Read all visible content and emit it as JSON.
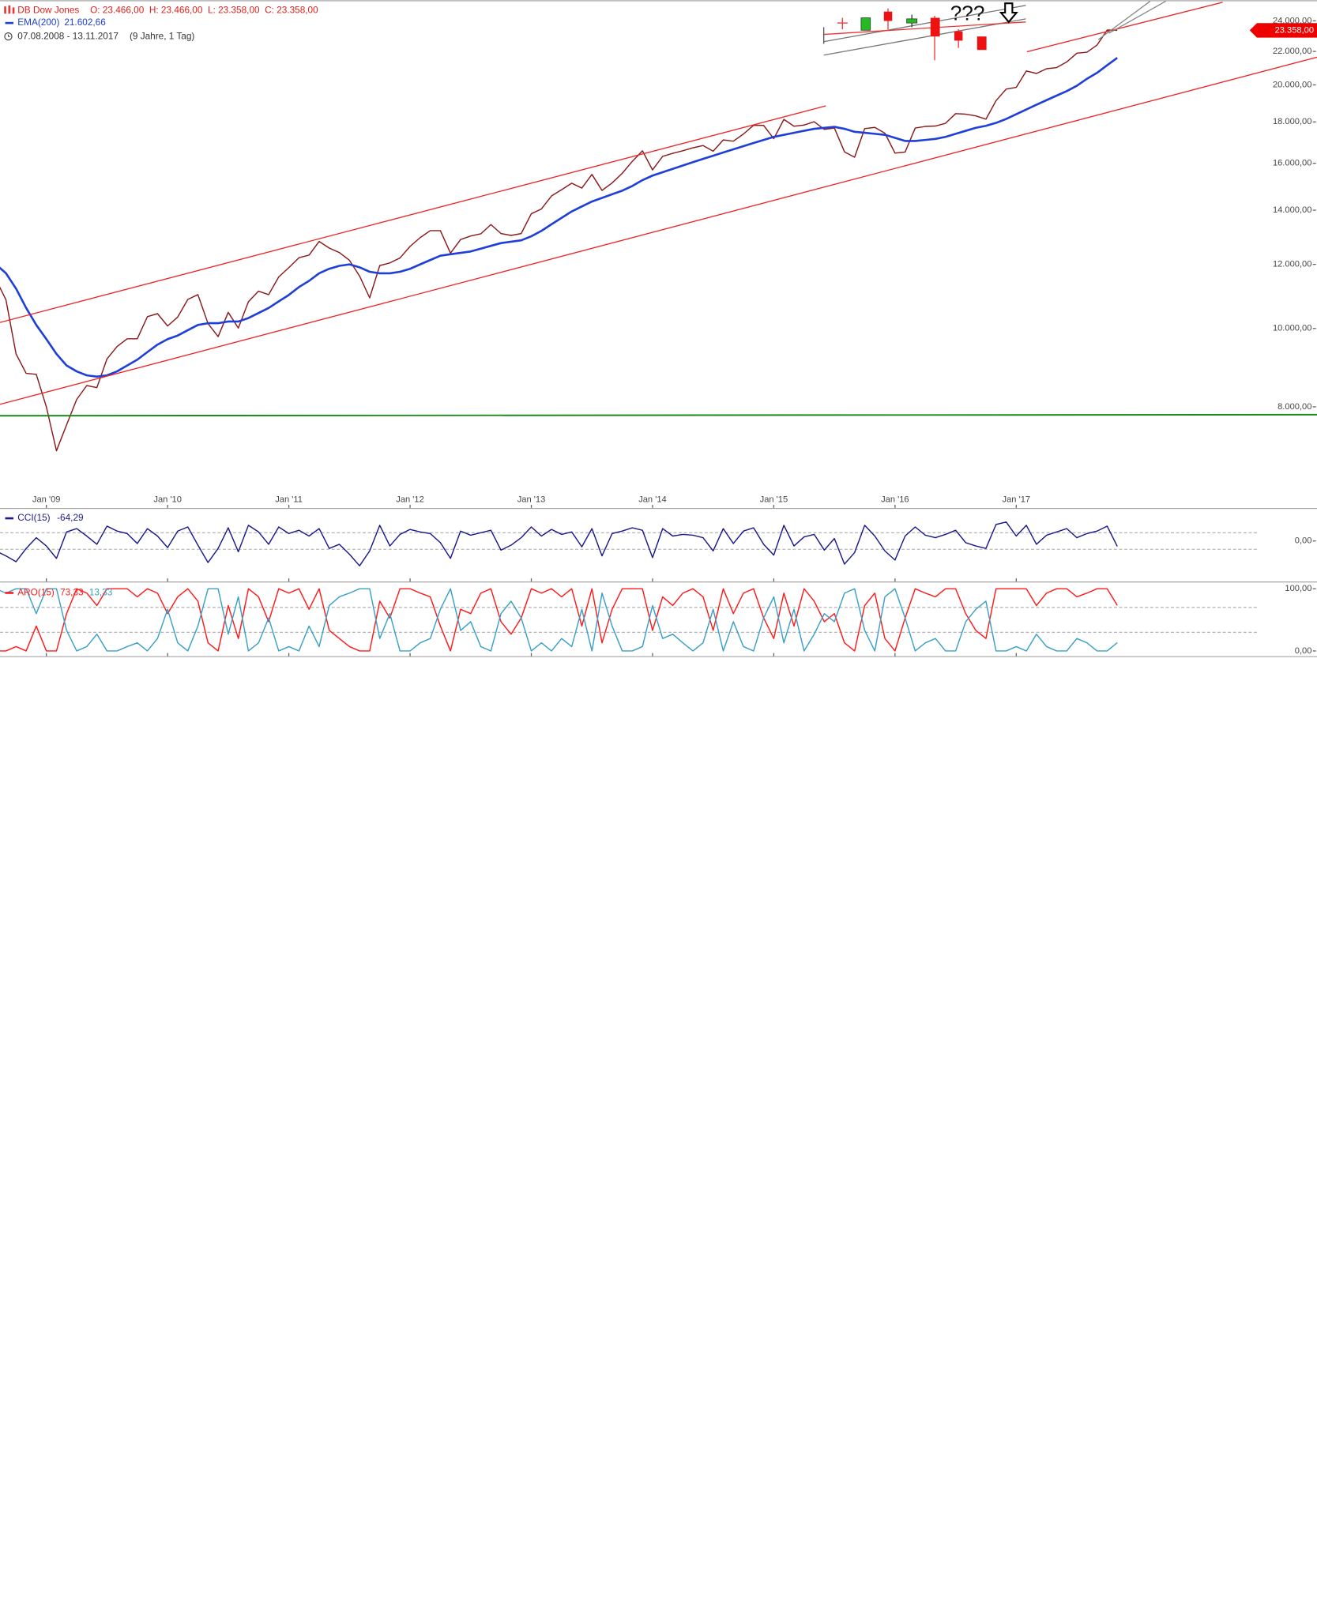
{
  "chart_data": [
    {
      "type": "line",
      "log": true,
      "title": "DB Dow Jones",
      "ohlc": "O: 23.466,00  H: 23.466,00  L: 23.358,00  C: 23.358,00",
      "period": "07.08.2008 - 13.11.2017",
      "span": "(9 Jahre, 1 Tag)",
      "annotation": "???",
      "categories": [
        null,
        null,
        null,
        null,
        null,
        "Jan '09",
        null,
        null,
        null,
        null,
        null,
        null,
        null,
        null,
        null,
        null,
        null,
        "Jan '10",
        null,
        null,
        null,
        null,
        null,
        null,
        null,
        null,
        null,
        null,
        null,
        "Jan '11",
        null,
        null,
        null,
        null,
        null,
        null,
        null,
        null,
        null,
        null,
        null,
        "Jan '12",
        null,
        null,
        null,
        null,
        null,
        null,
        null,
        null,
        null,
        null,
        null,
        "Jan '13",
        null,
        null,
        null,
        null,
        null,
        null,
        null,
        null,
        null,
        null,
        null,
        "Jan '14",
        null,
        null,
        null,
        null,
        null,
        null,
        null,
        null,
        null,
        null,
        null,
        "Jan '15",
        null,
        null,
        null,
        null,
        null,
        null,
        null,
        null,
        null,
        null,
        null,
        "Jan '16",
        null,
        null,
        null,
        null,
        null,
        null,
        null,
        null,
        null,
        null,
        null,
        "Jan '17",
        null,
        null,
        null,
        null,
        null,
        null,
        null,
        null,
        null,
        null
      ],
      "series": [
        {
          "name": "DB Dow Jones",
          "color": "#8b1a1a",
          "values": [
            11500,
            10850,
            9300,
            8800,
            8776,
            8000,
            7060,
            7600,
            8170,
            8500,
            8450,
            9170,
            9500,
            9710,
            9710,
            10340,
            10430,
            10070,
            10330,
            10860,
            11010,
            10140,
            9770,
            10470,
            10010,
            10790,
            11120,
            11010,
            11580,
            11890,
            12230,
            12320,
            12810,
            12570,
            12410,
            12140,
            11610,
            10910,
            11960,
            12050,
            12220,
            12630,
            12950,
            13210,
            13210,
            12390,
            12880,
            13010,
            13090,
            13440,
            13100,
            13030,
            13100,
            13860,
            14050,
            14580,
            14840,
            15120,
            14910,
            15500,
            14810,
            15130,
            15550,
            16090,
            16580,
            15700,
            16320,
            16460,
            16580,
            16720,
            16830,
            16560,
            17100,
            17040,
            17390,
            17830,
            17820,
            17160,
            18130,
            17780,
            17840,
            18010,
            17620,
            17690,
            16530,
            16280,
            17660,
            17720,
            17430,
            16470,
            16520,
            17690,
            17770,
            17790,
            17930,
            18430,
            18400,
            18310,
            18140,
            19120,
            19760,
            19860,
            20810,
            20660,
            20940,
            21010,
            21350,
            21890,
            21950,
            22400,
            23380,
            23358
          ]
        },
        {
          "name": "EMA(200)",
          "color": "#1f3fd9",
          "last_label": "21.602,66",
          "values": [
            12000,
            11700,
            11200,
            10600,
            10100,
            9700,
            9300,
            9000,
            8850,
            8750,
            8720,
            8750,
            8850,
            9000,
            9150,
            9350,
            9550,
            9700,
            9800,
            9950,
            10100,
            10150,
            10150,
            10200,
            10200,
            10300,
            10450,
            10600,
            10800,
            11000,
            11250,
            11450,
            11700,
            11850,
            11950,
            12000,
            11900,
            11750,
            11700,
            11700,
            11750,
            11850,
            12000,
            12150,
            12300,
            12350,
            12400,
            12450,
            12550,
            12650,
            12750,
            12800,
            12850,
            13000,
            13200,
            13450,
            13700,
            13950,
            14150,
            14350,
            14500,
            14650,
            14800,
            15000,
            15250,
            15450,
            15600,
            15750,
            15900,
            16050,
            16200,
            16350,
            16500,
            16650,
            16800,
            16950,
            17100,
            17250,
            17350,
            17450,
            17550,
            17650,
            17700,
            17750,
            17650,
            17500,
            17450,
            17400,
            17350,
            17200,
            17050,
            17050,
            17100,
            17150,
            17250,
            17400,
            17550,
            17700,
            17800,
            17950,
            18150,
            18400,
            18650,
            18900,
            19150,
            19400,
            19650,
            19950,
            20350,
            20700,
            21150,
            21602.66
          ]
        }
      ],
      "price_tag": {
        "value": 23358,
        "label": "23.358,00"
      },
      "ylim": [
        6000,
        25300
      ],
      "yticks": [
        {
          "value": 8000,
          "label": "8.000,00"
        },
        {
          "value": 10000,
          "label": "10.000,00"
        },
        {
          "value": 12000,
          "label": "12.000,00"
        },
        {
          "value": 14000,
          "label": "14.000,00"
        },
        {
          "value": 16000,
          "label": "16.000,00"
        },
        {
          "value": 18000,
          "label": "18.000,00"
        },
        {
          "value": 20000,
          "label": "20.000,00"
        },
        {
          "value": 22000,
          "label": "22.000,00"
        },
        {
          "value": 24000,
          "label": "24.000,00"
        }
      ]
    },
    {
      "type": "line",
      "series": [
        {
          "name": "CCI(15)",
          "color": "#1a1a8c",
          "last_label": "-64,29",
          "values": [
            -120,
            -180,
            -250,
            -90,
            40,
            -60,
            -210,
            110,
            150,
            60,
            -40,
            180,
            120,
            90,
            -30,
            150,
            60,
            -80,
            120,
            170,
            -50,
            -260,
            -90,
            160,
            -130,
            190,
            110,
            -40,
            170,
            90,
            130,
            60,
            150,
            -90,
            -40,
            -160,
            -300,
            -120,
            190,
            -60,
            80,
            140,
            110,
            90,
            -20,
            -210,
            120,
            70,
            100,
            130,
            -110,
            -50,
            40,
            170,
            60,
            140,
            80,
            110,
            -70,
            150,
            -180,
            90,
            120,
            160,
            130,
            -200,
            150,
            60,
            80,
            70,
            40,
            -120,
            150,
            -30,
            120,
            160,
            -40,
            -170,
            190,
            -60,
            50,
            80,
            -110,
            30,
            -280,
            -140,
            190,
            60,
            -120,
            -230,
            60,
            170,
            70,
            40,
            80,
            130,
            -20,
            -60,
            -90,
            200,
            230,
            60,
            190,
            -40,
            70,
            110,
            150,
            40,
            90,
            120,
            180,
            -64.29
          ]
        }
      ],
      "levels": [
        100,
        -100
      ],
      "ylim": [
        -490,
        375
      ],
      "yticks": [
        {
          "value": 0,
          "label": "0,00"
        }
      ]
    },
    {
      "type": "line",
      "series": [
        {
          "name": "ARO(15)",
          "color": "#ff1a1a",
          "last_label": "73,33",
          "values": [
            0,
            0,
            7,
            0,
            40,
            0,
            0,
            60,
            100,
            93,
            73,
            100,
            100,
            100,
            87,
            100,
            93,
            60,
            87,
            100,
            80,
            13,
            0,
            73,
            20,
            100,
            87,
            47,
            100,
            93,
            100,
            67,
            100,
            33,
            20,
            7,
            0,
            0,
            80,
            53,
            100,
            100,
            93,
            87,
            40,
            0,
            67,
            60,
            93,
            100,
            47,
            27,
            53,
            100,
            93,
            100,
            87,
            100,
            40,
            100,
            13,
            67,
            100,
            100,
            100,
            33,
            87,
            73,
            93,
            100,
            87,
            33,
            100,
            60,
            93,
            100,
            53,
            20,
            93,
            40,
            100,
            80,
            47,
            60,
            13,
            0,
            73,
            93,
            20,
            0,
            53,
            100,
            93,
            87,
            100,
            100,
            60,
            33,
            20,
            100,
            100,
            100,
            100,
            73,
            93,
            100,
            100,
            87,
            93,
            100,
            100,
            73.33
          ]
        },
        {
          "color": "#3aa0c8",
          "last_label": "13,33",
          "values": [
            100,
            93,
            100,
            100,
            60,
            100,
            100,
            33,
            0,
            7,
            27,
            0,
            0,
            7,
            13,
            0,
            20,
            67,
            13,
            0,
            40,
            100,
            100,
            27,
            87,
            0,
            13,
            53,
            0,
            7,
            0,
            40,
            7,
            73,
            87,
            93,
            100,
            100,
            20,
            60,
            0,
            0,
            13,
            20,
            67,
            100,
            33,
            47,
            7,
            0,
            60,
            80,
            53,
            0,
            13,
            0,
            20,
            7,
            67,
            0,
            93,
            40,
            0,
            0,
            7,
            73,
            20,
            27,
            13,
            0,
            13,
            67,
            0,
            47,
            7,
            0,
            53,
            87,
            13,
            67,
            0,
            27,
            60,
            47,
            93,
            100,
            33,
            0,
            87,
            100,
            53,
            0,
            13,
            20,
            0,
            0,
            47,
            67,
            80,
            0,
            0,
            7,
            0,
            27,
            7,
            0,
            0,
            20,
            13,
            0,
            0,
            13.33
          ]
        }
      ],
      "levels": [
        70,
        30
      ],
      "ylim": [
        -8.3,
        108.3
      ],
      "yticks": [
        {
          "value": 100,
          "label": "100,00"
        },
        {
          "value": 0,
          "label": "0,00"
        }
      ]
    }
  ]
}
